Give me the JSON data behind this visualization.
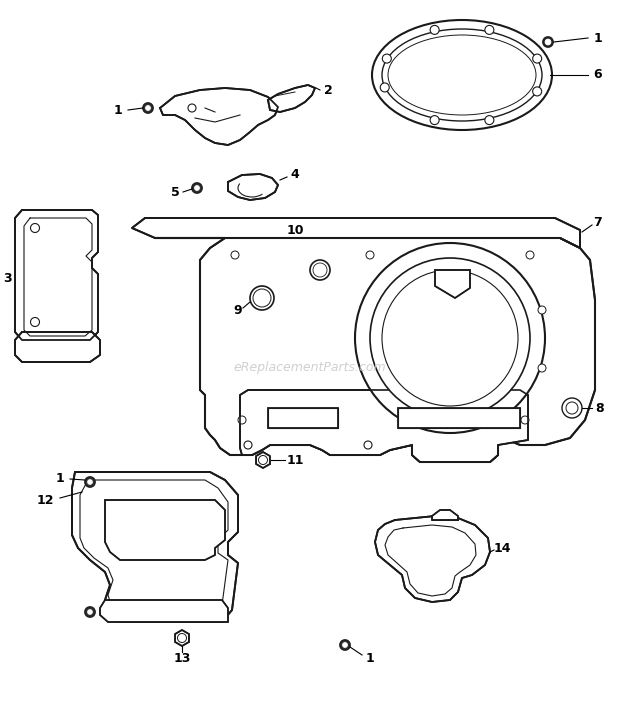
{
  "background_color": "#ffffff",
  "line_color": "#1a1a1a",
  "line_width": 1.3,
  "watermark_text": "eReplacementParts.com",
  "watermark_color": "#c8c8c8",
  "watermark_fontsize": 9,
  "label_fontsize": 9,
  "figsize": [
    6.2,
    7.01
  ],
  "dpi": 100
}
